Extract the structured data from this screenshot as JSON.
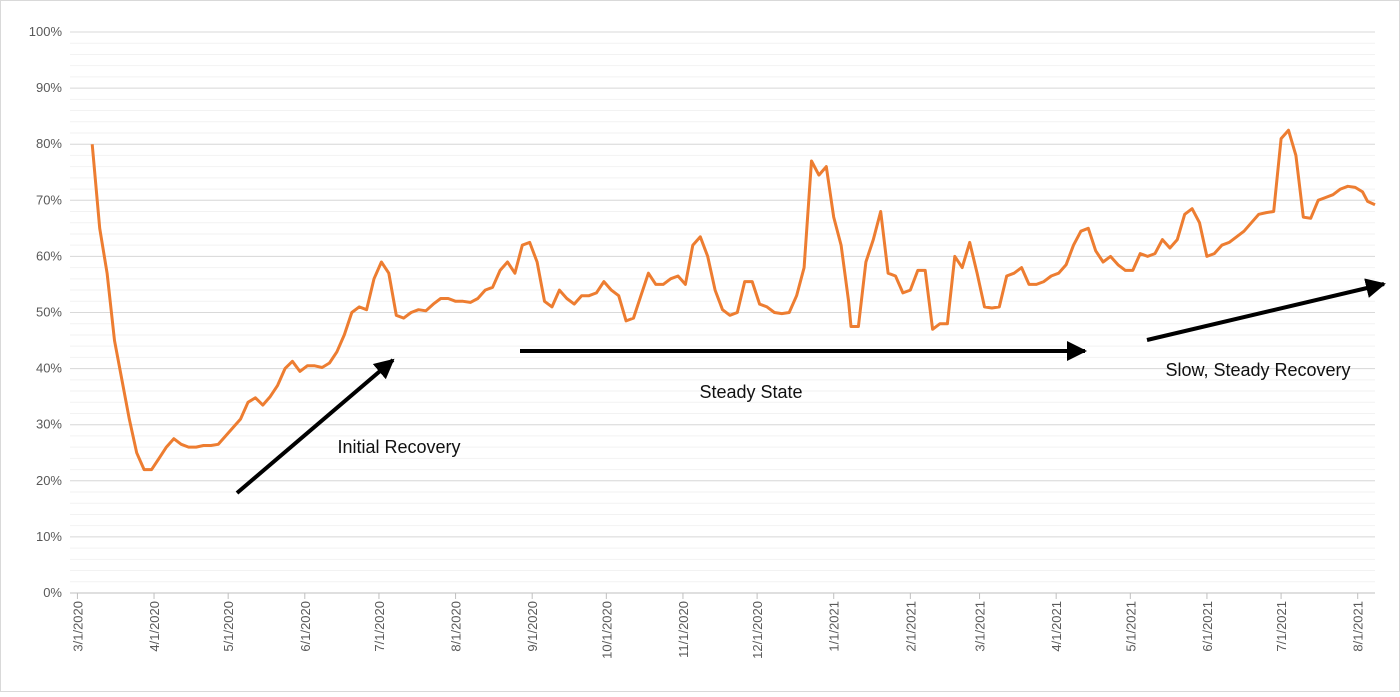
{
  "chart_data": {
    "type": "line",
    "color": "#ed7d31",
    "annotations": [
      "Initial Recovery",
      "Steady State",
      "Slow, Steady Recovery"
    ],
    "x": [
      "3/7/2020",
      "3/10/2020",
      "3/13/2020",
      "3/16/2020",
      "3/19/2020",
      "3/22/2020",
      "3/25/2020",
      "3/28/2020",
      "3/31/2020",
      "4/3/2020",
      "4/6/2020",
      "4/9/2020",
      "4/12/2020",
      "4/15/2020",
      "4/18/2020",
      "4/21/2020",
      "4/24/2020",
      "4/27/2020",
      "4/30/2020",
      "5/3/2020",
      "5/6/2020",
      "5/9/2020",
      "5/12/2020",
      "5/15/2020",
      "5/18/2020",
      "5/21/2020",
      "5/24/2020",
      "5/27/2020",
      "5/30/2020",
      "6/2/2020",
      "6/5/2020",
      "6/8/2020",
      "6/11/2020",
      "6/14/2020",
      "6/17/2020",
      "6/20/2020",
      "6/23/2020",
      "6/26/2020",
      "6/29/2020",
      "7/2/2020",
      "7/5/2020",
      "7/8/2020",
      "7/11/2020",
      "7/14/2020",
      "7/17/2020",
      "7/20/2020",
      "7/23/2020",
      "7/26/2020",
      "7/29/2020",
      "8/1/2020",
      "8/4/2020",
      "8/7/2020",
      "8/10/2020",
      "8/13/2020",
      "8/16/2020",
      "8/19/2020",
      "8/22/2020",
      "8/25/2020",
      "8/28/2020",
      "8/31/2020",
      "9/3/2020",
      "9/6/2020",
      "9/9/2020",
      "9/12/2020",
      "9/15/2020",
      "9/18/2020",
      "9/21/2020",
      "9/24/2020",
      "9/27/2020",
      "9/30/2020",
      "10/3/2020",
      "10/6/2020",
      "10/9/2020",
      "10/12/2020",
      "10/15/2020",
      "10/18/2020",
      "10/21/2020",
      "10/24/2020",
      "10/27/2020",
      "10/30/2020",
      "11/2/2020",
      "11/5/2020",
      "11/8/2020",
      "11/11/2020",
      "11/14/2020",
      "11/17/2020",
      "11/20/2020",
      "11/23/2020",
      "11/26/2020",
      "11/29/2020",
      "12/2/2020",
      "12/5/2020",
      "12/8/2020",
      "12/11/2020",
      "12/14/2020",
      "12/17/2020",
      "12/20/2020",
      "12/23/2020",
      "12/26/2020",
      "12/29/2020",
      "1/1/2021",
      "1/4/2021",
      "1/7/2021",
      "1/8/2021",
      "1/11/2021",
      "1/14/2021",
      "1/17/2021",
      "1/20/2021",
      "1/23/2021",
      "1/26/2021",
      "1/29/2021",
      "2/1/2021",
      "2/4/2021",
      "2/7/2021",
      "2/10/2021",
      "2/13/2021",
      "2/16/2021",
      "2/19/2021",
      "2/22/2021",
      "2/25/2021",
      "2/28/2021",
      "3/3/2021",
      "3/6/2021",
      "3/9/2021",
      "3/12/2021",
      "3/15/2021",
      "3/18/2021",
      "3/21/2021",
      "3/24/2021",
      "3/27/2021",
      "3/30/2021",
      "4/2/2021",
      "4/5/2021",
      "4/8/2021",
      "4/11/2021",
      "4/14/2021",
      "4/17/2021",
      "4/20/2021",
      "4/23/2021",
      "4/26/2021",
      "4/29/2021",
      "5/2/2021",
      "5/5/2021",
      "5/8/2021",
      "5/11/2021",
      "5/14/2021",
      "5/17/2021",
      "5/20/2021",
      "5/23/2021",
      "5/26/2021",
      "5/29/2021",
      "6/1/2021",
      "6/4/2021",
      "6/7/2021",
      "6/10/2021",
      "6/13/2021",
      "6/16/2021",
      "6/19/2021",
      "6/22/2021",
      "6/25/2021",
      "6/28/2021",
      "7/1/2021",
      "7/4/2021",
      "7/7/2021",
      "7/10/2021",
      "7/13/2021",
      "7/16/2021",
      "7/19/2021",
      "7/22/2021",
      "7/25/2021",
      "7/28/2021",
      "7/31/2021",
      "8/3/2021",
      "8/5/2021",
      "8/8/2021"
    ],
    "values": [
      80,
      65,
      57,
      45,
      38,
      31,
      25,
      22,
      22,
      24,
      26,
      27.5,
      26.5,
      26,
      26,
      26.3,
      26.3,
      26.5,
      28,
      29.5,
      31,
      34,
      34.8,
      33.5,
      35,
      37,
      40,
      41.3,
      39.5,
      40.5,
      40.5,
      40.2,
      41,
      43,
      46,
      50,
      51,
      50.5,
      56,
      59,
      57,
      49.5,
      49,
      50,
      50.5,
      50.3,
      51.5,
      52.5,
      52.5,
      52,
      52,
      51.8,
      52.5,
      54,
      54.5,
      57.5,
      59,
      57,
      62,
      62.5,
      59,
      52,
      51,
      54,
      52.5,
      51.5,
      53,
      53,
      53.5,
      55.5,
      54,
      53,
      48.5,
      49,
      53,
      57,
      55,
      55,
      56,
      56.5,
      55,
      62,
      63.5,
      60,
      54,
      50.5,
      49.5,
      50,
      55.5,
      55.5,
      51.5,
      51,
      50,
      49.8,
      50,
      53,
      58,
      77,
      74.5,
      76,
      67,
      62,
      52,
      47.5,
      47.5,
      59,
      63,
      68,
      57,
      56.5,
      53.5,
      54,
      57.5,
      57.5,
      47,
      48,
      48,
      60,
      58,
      62.5,
      57,
      51,
      50.8,
      51,
      56.5,
      57,
      58,
      55,
      55,
      55.5,
      56.5,
      57,
      58.5,
      62,
      64.5,
      65,
      61,
      59,
      60,
      58.5,
      57.5,
      57.5,
      60.5,
      60,
      60.5,
      63,
      61.5,
      63,
      67.5,
      68.5,
      66,
      60,
      60.5,
      62,
      62.5,
      63.5,
      64.5,
      66,
      67.5,
      67.8,
      68,
      81,
      82.5,
      78,
      67,
      66.8,
      70,
      70.5,
      71,
      72,
      72.5,
      72.3,
      71.5,
      69.8,
      69.2
    ],
    "xlim": [
      "2/27/2020",
      "8/8/2021"
    ],
    "xticks": [
      "3/1/2020",
      "4/1/2020",
      "5/1/2020",
      "6/1/2020",
      "7/1/2020",
      "8/1/2020",
      "9/1/2020",
      "10/1/2020",
      "11/1/2020",
      "12/1/2020",
      "1/1/2021",
      "2/1/2021",
      "3/1/2021",
      "4/1/2021",
      "5/1/2021",
      "6/1/2021",
      "7/1/2021",
      "8/1/2021"
    ],
    "ylim": [
      0,
      100
    ],
    "yticks": [
      {
        "value": 0,
        "label": "0%"
      },
      {
        "value": 10,
        "label": "10%"
      },
      {
        "value": 20,
        "label": "20%"
      },
      {
        "value": 30,
        "label": "30%"
      },
      {
        "value": 40,
        "label": "40%"
      },
      {
        "value": 50,
        "label": "50%"
      },
      {
        "value": 60,
        "label": "60%"
      },
      {
        "value": 70,
        "label": "70%"
      },
      {
        "value": 80,
        "label": "80%"
      },
      {
        "value": 90,
        "label": "90%"
      },
      {
        "value": 100,
        "label": "100%"
      }
    ],
    "grid": true
  }
}
